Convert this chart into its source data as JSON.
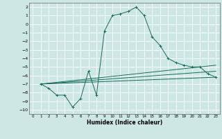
{
  "xlabel": "Humidex (Indice chaleur)",
  "ylabel": "",
  "xlim": [
    -0.5,
    23.5
  ],
  "ylim": [
    -10.5,
    2.5
  ],
  "xticks": [
    0,
    1,
    2,
    3,
    4,
    5,
    6,
    7,
    8,
    9,
    10,
    11,
    12,
    13,
    14,
    15,
    16,
    17,
    18,
    19,
    20,
    21,
    22,
    23
  ],
  "yticks": [
    2,
    1,
    0,
    -1,
    -2,
    -3,
    -4,
    -5,
    -6,
    -7,
    -8,
    -9,
    -10
  ],
  "bg_color": "#cde8e4",
  "line_color": "#1a6b5a",
  "grid_color": "#b0d4cf",
  "main_line": {
    "x": [
      1,
      2,
      3,
      4,
      5,
      6,
      7,
      8,
      9,
      10,
      11,
      12,
      13,
      14,
      15,
      16,
      17,
      18,
      19,
      20,
      21,
      22,
      23
    ],
    "y": [
      -7.0,
      -7.5,
      -8.3,
      -8.3,
      -9.7,
      -8.7,
      -5.5,
      -8.3,
      -0.8,
      1.0,
      1.2,
      1.5,
      2.0,
      1.0,
      -1.5,
      -2.5,
      -4.0,
      -4.5,
      -4.8,
      -5.0,
      -5.0,
      -5.8,
      -6.2
    ]
  },
  "ref_lines": [
    {
      "x": [
        1,
        23
      ],
      "y": [
        -7.0,
        -6.2
      ]
    },
    {
      "x": [
        1,
        23
      ],
      "y": [
        -7.0,
        -5.5
      ]
    },
    {
      "x": [
        1,
        23
      ],
      "y": [
        -7.0,
        -4.8
      ]
    }
  ]
}
